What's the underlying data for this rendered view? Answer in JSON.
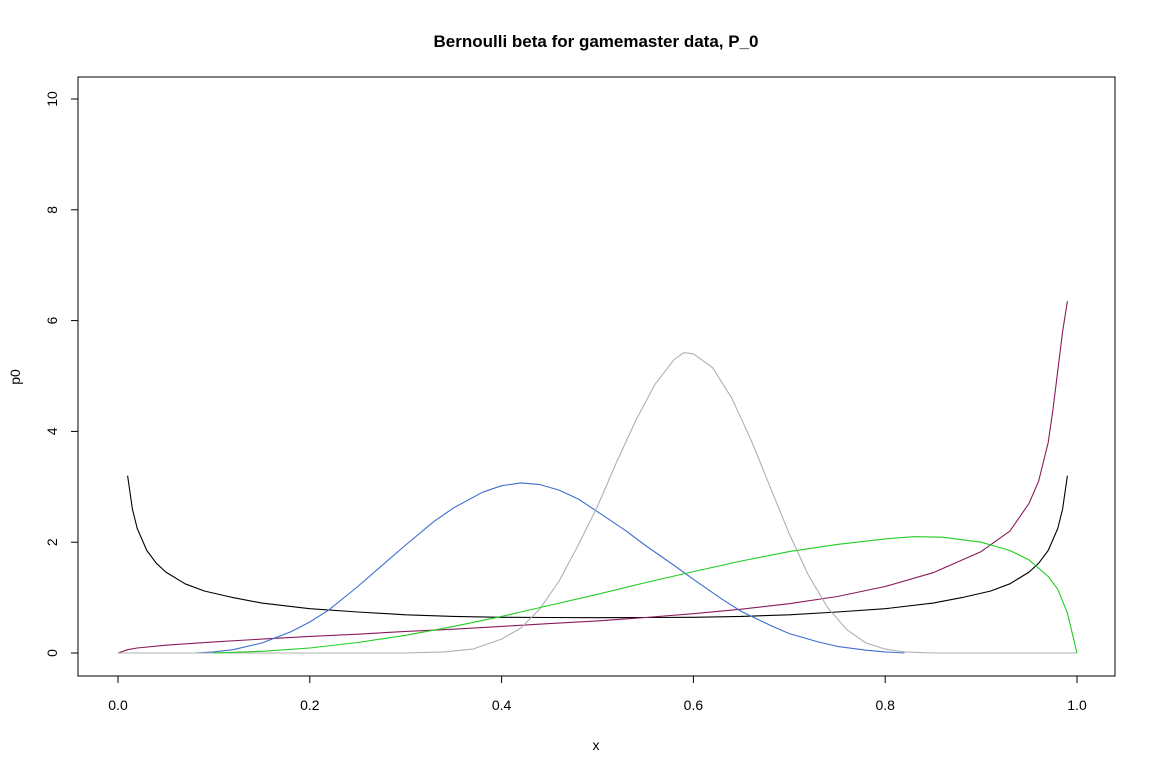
{
  "chart_data": {
    "type": "line",
    "title": "Bernoulli beta for gamemaster data, P_0",
    "xlabel": "x",
    "ylabel": "p0",
    "xlim": [
      0.0,
      1.0
    ],
    "ylim": [
      0,
      10
    ],
    "x_ticks": [
      "0.0",
      "0.2",
      "0.4",
      "0.6",
      "0.8",
      "1.0"
    ],
    "y_ticks": [
      "0",
      "2",
      "4",
      "6",
      "8",
      "10"
    ],
    "grid": false,
    "legend": "none",
    "series": [
      {
        "color": "#000000",
        "points": [
          [
            0.01,
            3.2
          ],
          [
            0.015,
            2.6
          ],
          [
            0.02,
            2.25
          ],
          [
            0.03,
            1.85
          ],
          [
            0.04,
            1.62
          ],
          [
            0.05,
            1.46
          ],
          [
            0.07,
            1.25
          ],
          [
            0.09,
            1.12
          ],
          [
            0.12,
            1.0
          ],
          [
            0.15,
            0.9
          ],
          [
            0.2,
            0.8
          ],
          [
            0.25,
            0.74
          ],
          [
            0.3,
            0.69
          ],
          [
            0.35,
            0.66
          ],
          [
            0.4,
            0.645
          ],
          [
            0.45,
            0.64
          ],
          [
            0.5,
            0.637
          ],
          [
            0.55,
            0.64
          ],
          [
            0.6,
            0.645
          ],
          [
            0.65,
            0.66
          ],
          [
            0.7,
            0.69
          ],
          [
            0.75,
            0.74
          ],
          [
            0.8,
            0.8
          ],
          [
            0.85,
            0.9
          ],
          [
            0.88,
            1.0
          ],
          [
            0.91,
            1.12
          ],
          [
            0.93,
            1.25
          ],
          [
            0.95,
            1.46
          ],
          [
            0.96,
            1.62
          ],
          [
            0.97,
            1.85
          ],
          [
            0.98,
            2.25
          ],
          [
            0.985,
            2.6
          ],
          [
            0.99,
            3.2
          ]
        ]
      },
      {
        "color": "#8b1a5a",
        "points": [
          [
            0.0,
            0.0
          ],
          [
            0.01,
            0.06
          ],
          [
            0.02,
            0.09
          ],
          [
            0.05,
            0.14
          ],
          [
            0.1,
            0.2
          ],
          [
            0.15,
            0.25
          ],
          [
            0.2,
            0.3
          ],
          [
            0.25,
            0.34
          ],
          [
            0.3,
            0.39
          ],
          [
            0.35,
            0.43
          ],
          [
            0.4,
            0.48
          ],
          [
            0.45,
            0.53
          ],
          [
            0.5,
            0.58
          ],
          [
            0.55,
            0.64
          ],
          [
            0.6,
            0.71
          ],
          [
            0.65,
            0.79
          ],
          [
            0.7,
            0.89
          ],
          [
            0.75,
            1.02
          ],
          [
            0.8,
            1.2
          ],
          [
            0.85,
            1.45
          ],
          [
            0.9,
            1.83
          ],
          [
            0.93,
            2.2
          ],
          [
            0.95,
            2.7
          ],
          [
            0.96,
            3.1
          ],
          [
            0.97,
            3.8
          ],
          [
            0.975,
            4.4
          ],
          [
            0.98,
            5.1
          ],
          [
            0.985,
            5.8
          ],
          [
            0.99,
            6.35
          ]
        ]
      },
      {
        "color": "#3c6fd0",
        "points": [
          [
            0.08,
            0.0
          ],
          [
            0.1,
            0.02
          ],
          [
            0.12,
            0.06
          ],
          [
            0.15,
            0.18
          ],
          [
            0.18,
            0.38
          ],
          [
            0.2,
            0.56
          ],
          [
            0.22,
            0.78
          ],
          [
            0.25,
            1.2
          ],
          [
            0.28,
            1.65
          ],
          [
            0.3,
            1.95
          ],
          [
            0.33,
            2.38
          ],
          [
            0.35,
            2.62
          ],
          [
            0.38,
            2.9
          ],
          [
            0.4,
            3.02
          ],
          [
            0.42,
            3.07
          ],
          [
            0.44,
            3.04
          ],
          [
            0.46,
            2.94
          ],
          [
            0.48,
            2.78
          ],
          [
            0.5,
            2.55
          ],
          [
            0.53,
            2.2
          ],
          [
            0.55,
            1.94
          ],
          [
            0.58,
            1.58
          ],
          [
            0.6,
            1.33
          ],
          [
            0.63,
            0.97
          ],
          [
            0.65,
            0.75
          ],
          [
            0.68,
            0.5
          ],
          [
            0.7,
            0.35
          ],
          [
            0.73,
            0.2
          ],
          [
            0.75,
            0.12
          ],
          [
            0.78,
            0.05
          ],
          [
            0.8,
            0.02
          ],
          [
            0.82,
            0.0
          ]
        ]
      },
      {
        "color": "#b0b0b0",
        "points": [
          [
            0.0,
            0.0
          ],
          [
            0.3,
            0.0
          ],
          [
            0.34,
            0.02
          ],
          [
            0.37,
            0.07
          ],
          [
            0.4,
            0.25
          ],
          [
            0.42,
            0.45
          ],
          [
            0.44,
            0.8
          ],
          [
            0.46,
            1.3
          ],
          [
            0.48,
            1.95
          ],
          [
            0.5,
            2.65
          ],
          [
            0.52,
            3.45
          ],
          [
            0.54,
            4.2
          ],
          [
            0.56,
            4.85
          ],
          [
            0.58,
            5.3
          ],
          [
            0.59,
            5.42
          ],
          [
            0.6,
            5.4
          ],
          [
            0.62,
            5.15
          ],
          [
            0.64,
            4.6
          ],
          [
            0.66,
            3.85
          ],
          [
            0.68,
            3.0
          ],
          [
            0.7,
            2.15
          ],
          [
            0.72,
            1.4
          ],
          [
            0.74,
            0.82
          ],
          [
            0.76,
            0.42
          ],
          [
            0.78,
            0.18
          ],
          [
            0.8,
            0.07
          ],
          [
            0.82,
            0.02
          ],
          [
            0.85,
            0.0
          ],
          [
            1.0,
            0.0
          ]
        ]
      },
      {
        "color": "#22cc22",
        "points": [
          [
            0.1,
            0.0
          ],
          [
            0.15,
            0.03
          ],
          [
            0.2,
            0.09
          ],
          [
            0.25,
            0.19
          ],
          [
            0.3,
            0.32
          ],
          [
            0.35,
            0.48
          ],
          [
            0.4,
            0.66
          ],
          [
            0.45,
            0.86
          ],
          [
            0.5,
            1.06
          ],
          [
            0.55,
            1.27
          ],
          [
            0.6,
            1.47
          ],
          [
            0.65,
            1.66
          ],
          [
            0.7,
            1.83
          ],
          [
            0.75,
            1.96
          ],
          [
            0.8,
            2.06
          ],
          [
            0.83,
            2.1
          ],
          [
            0.86,
            2.09
          ],
          [
            0.9,
            2.0
          ],
          [
            0.93,
            1.85
          ],
          [
            0.95,
            1.68
          ],
          [
            0.97,
            1.38
          ],
          [
            0.98,
            1.15
          ],
          [
            0.99,
            0.72
          ],
          [
            1.0,
            0.0
          ]
        ]
      }
    ]
  }
}
